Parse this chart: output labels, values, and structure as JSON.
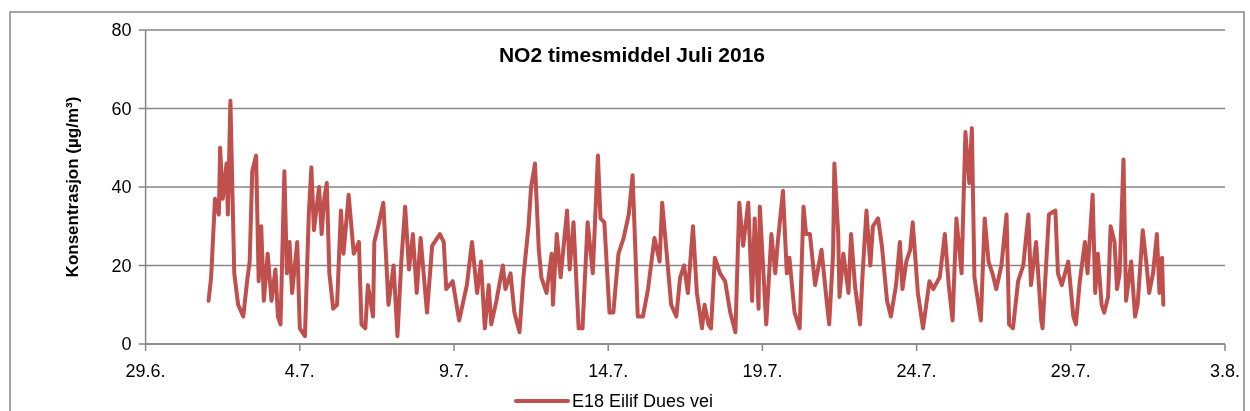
{
  "chart_data": {
    "type": "line",
    "title": "NO2 timesmiddel Juli 2016",
    "ylabel": "Konsentrasjon (µg/m³)",
    "xlim": [
      "2016-06-29",
      "2016-08-03"
    ],
    "xticks": [
      {
        "value": "2016-06-29",
        "label": "29.6."
      },
      {
        "value": "2016-07-04",
        "label": "4.7."
      },
      {
        "value": "2016-07-09",
        "label": "9.7."
      },
      {
        "value": "2016-07-14",
        "label": "14.7."
      },
      {
        "value": "2016-07-19",
        "label": "19.7."
      },
      {
        "value": "2016-07-24",
        "label": "24.7."
      },
      {
        "value": "2016-07-29",
        "label": "29.7."
      },
      {
        "value": "2016-08-03",
        "label": "3.8."
      }
    ],
    "ylim": [
      0,
      80
    ],
    "yticks": [
      0,
      20,
      40,
      60,
      80
    ],
    "grid": "y",
    "legend": "bottom",
    "line_style": "solid",
    "marker": "none",
    "x": [
      "2016-07-01T01:00",
      "2016-07-01T03:00",
      "2016-07-01T06:00",
      "2016-07-01T09:00",
      "2016-07-01T10:00",
      "2016-07-01T12:00",
      "2016-07-01T15:00",
      "2016-07-01T16:00",
      "2016-07-01T18:00",
      "2016-07-01T21:00",
      "2016-07-02T00:00",
      "2016-07-02T04:00",
      "2016-07-02T07:00",
      "2016-07-02T09:00",
      "2016-07-02T11:00",
      "2016-07-02T14:00",
      "2016-07-02T16:00",
      "2016-07-02T18:00",
      "2016-07-02T20:00",
      "2016-07-02T23:00",
      "2016-07-03T02:00",
      "2016-07-03T05:00",
      "2016-07-03T07:00",
      "2016-07-03T09:00",
      "2016-07-03T12:00",
      "2016-07-03T14:00",
      "2016-07-03T16:00",
      "2016-07-03T18:00",
      "2016-07-03T22:00",
      "2016-07-04T00:00",
      "2016-07-04T04:00",
      "2016-07-04T07:00",
      "2016-07-04T09:00",
      "2016-07-04T11:00",
      "2016-07-04T15:00",
      "2016-07-04T17:00",
      "2016-07-04T19:00",
      "2016-07-04T21:00",
      "2016-07-04T23:00",
      "2016-07-05T02:00",
      "2016-07-05T05:00",
      "2016-07-05T08:00",
      "2016-07-05T10:00",
      "2016-07-05T14:00",
      "2016-07-05T18:00",
      "2016-07-05T22:00",
      "2016-07-06T00:00",
      "2016-07-06T03:00",
      "2016-07-06T05:00",
      "2016-07-06T09:00",
      "2016-07-06T10:00",
      "2016-07-06T13:00",
      "2016-07-06T17:00",
      "2016-07-06T21:00",
      "2016-07-07T01:00",
      "2016-07-07T04:00",
      "2016-07-07T07:00",
      "2016-07-07T10:00",
      "2016-07-07T13:00",
      "2016-07-07T16:00",
      "2016-07-07T19:00",
      "2016-07-07T22:00",
      "2016-07-08T03:00",
      "2016-07-08T07:00",
      "2016-07-08T09:00",
      "2016-07-08T13:00",
      "2016-07-08T16:00",
      "2016-07-08T18:00",
      "2016-07-08T23:00",
      "2016-07-09T04:00",
      "2016-07-09T10:00",
      "2016-07-09T14:00",
      "2016-07-09T18:00",
      "2016-07-09T21:00",
      "2016-07-10T00:00",
      "2016-07-10T03:00",
      "2016-07-10T05:00",
      "2016-07-10T09:00",
      "2016-07-10T14:00",
      "2016-07-10T16:00",
      "2016-07-10T20:00",
      "2016-07-10T23:00",
      "2016-07-11T03:00",
      "2016-07-11T06:00",
      "2016-07-11T10:00",
      "2016-07-11T12:00",
      "2016-07-11T15:00",
      "2016-07-11T18:00",
      "2016-07-11T20:00",
      "2016-07-12T00:00",
      "2016-07-12T04:00",
      "2016-07-12T05:00",
      "2016-07-12T08:00",
      "2016-07-12T11:00",
      "2016-07-12T16:00",
      "2016-07-12T18:00",
      "2016-07-12T21:00",
      "2016-07-13T01:00",
      "2016-07-13T04:00",
      "2016-07-13T08:00",
      "2016-07-13T12:00",
      "2016-07-13T16:00",
      "2016-07-13T18:00",
      "2016-07-13T21:00",
      "2016-07-14T01:00",
      "2016-07-14T04:00",
      "2016-07-14T08:00",
      "2016-07-14T12:00",
      "2016-07-14T16:00",
      "2016-07-14T19:00",
      "2016-07-14T23:00",
      "2016-07-15T03:00",
      "2016-07-15T07:00",
      "2016-07-15T12:00",
      "2016-07-15T16:00",
      "2016-07-15T18:00",
      "2016-07-15T21:00",
      "2016-07-16T01:00",
      "2016-07-16T05:00",
      "2016-07-16T08:00",
      "2016-07-16T11:00",
      "2016-07-16T14:00",
      "2016-07-16T18:00",
      "2016-07-16T21:00",
      "2016-07-17T01:00",
      "2016-07-17T03:00",
      "2016-07-17T06:00",
      "2016-07-17T08:00",
      "2016-07-17T11:00",
      "2016-07-17T15:00",
      "2016-07-17T19:00",
      "2016-07-17T23:00",
      "2016-07-18T03:00",
      "2016-07-18T06:00",
      "2016-07-18T09:00",
      "2016-07-18T13:00",
      "2016-07-18T16:00",
      "2016-07-18T18:00",
      "2016-07-18T21:00",
      "2016-07-18T22:00",
      "2016-07-19T03:00",
      "2016-07-19T07:00",
      "2016-07-19T10:00",
      "2016-07-19T12:00",
      "2016-07-19T16:00",
      "2016-07-19T19:00",
      "2016-07-19T21:00",
      "2016-07-20T01:00",
      "2016-07-20T05:00",
      "2016-07-20T08:00",
      "2016-07-20T10:00",
      "2016-07-20T13:00",
      "2016-07-20T17:00",
      "2016-07-20T22:00",
      "2016-07-21T02:00",
      "2016-07-21T04:00",
      "2016-07-21T07:00",
      "2016-07-21T08:00",
      "2016-07-21T11:00",
      "2016-07-21T12:00",
      "2016-07-21T15:00",
      "2016-07-21T19:00",
      "2016-07-21T21:00",
      "2016-07-22T00:00",
      "2016-07-22T04:00",
      "2016-07-22T06:00",
      "2016-07-22T09:00",
      "2016-07-22T12:00",
      "2016-07-22T14:00",
      "2016-07-22T18:00",
      "2016-07-22T21:00",
      "2016-07-23T01:00",
      "2016-07-23T04:00",
      "2016-07-23T08:00",
      "2016-07-23T11:00",
      "2016-07-23T13:00",
      "2016-07-23T16:00",
      "2016-07-23T19:00",
      "2016-07-23T21:00",
      "2016-07-24T01:00",
      "2016-07-24T05:00",
      "2016-07-24T10:00",
      "2016-07-24T13:00",
      "2016-07-24T18:00",
      "2016-07-24T22:00",
      "2016-07-25T01:00",
      "2016-07-25T04:00",
      "2016-07-25T07:00",
      "2016-07-25T11:00",
      "2016-07-25T14:00",
      "2016-07-25T17:00",
      "2016-07-25T19:00",
      "2016-07-25T21:00",
      "2016-07-26T02:00",
      "2016-07-26T05:00",
      "2016-07-26T08:00",
      "2016-07-26T11:00",
      "2016-07-26T14:00",
      "2016-07-26T18:00",
      "2016-07-26T22:00",
      "2016-07-27T00:00",
      "2016-07-27T03:00",
      "2016-07-27T07:00",
      "2016-07-27T11:00",
      "2016-07-27T15:00",
      "2016-07-27T17:00",
      "2016-07-27T21:00",
      "2016-07-28T01:00",
      "2016-07-28T02:00",
      "2016-07-28T07:00",
      "2016-07-28T12:00",
      "2016-07-28T14:00",
      "2016-07-28T17:00",
      "2016-07-28T22:00",
      "2016-07-29T02:00",
      "2016-07-29T04:00",
      "2016-07-29T07:00",
      "2016-07-29T11:00",
      "2016-07-29T13:00",
      "2016-07-29T17:00",
      "2016-07-29T19:00",
      "2016-07-29T21:00",
      "2016-07-30T00:00",
      "2016-07-30T02:00",
      "2016-07-30T05:00",
      "2016-07-30T07:00",
      "2016-07-30T10:00",
      "2016-07-30T12:00",
      "2016-07-30T14:00",
      "2016-07-30T17:00",
      "2016-07-30T19:00",
      "2016-07-30T23:00",
      "2016-07-31T02:00",
      "2016-07-31T04:00",
      "2016-07-31T08:00",
      "2016-07-31T11:00",
      "2016-07-31T13:00",
      "2016-07-31T16:00",
      "2016-07-31T19:00",
      "2016-07-31T21:00",
      "2016-07-31T23:00",
      "2016-08-01T00:00"
    ],
    "series": [
      {
        "name": "E18 Eilif Dues vei",
        "color": "#c0504d",
        "values": [
          11,
          17,
          37,
          33,
          50,
          37,
          46,
          33,
          62,
          18,
          10,
          7,
          16,
          21,
          44,
          48,
          16,
          30,
          11,
          23,
          11,
          19,
          7,
          5,
          44,
          18,
          26,
          13,
          26,
          4,
          2,
          33,
          45,
          29,
          40,
          28,
          37,
          41,
          18,
          9,
          10,
          34,
          23,
          38,
          23,
          26,
          5,
          4,
          15,
          7,
          26,
          30,
          36,
          10,
          20,
          2,
          21,
          35,
          19,
          28,
          13,
          27,
          8,
          25,
          26,
          28,
          26,
          14,
          16,
          6,
          15,
          26,
          13,
          21,
          4,
          15,
          5,
          11,
          20,
          14,
          18,
          8,
          3,
          17,
          30,
          40,
          46,
          24,
          17,
          13,
          23,
          10,
          28,
          17,
          34,
          19,
          31,
          4,
          4,
          31,
          18,
          48,
          32,
          31,
          8,
          8,
          23,
          27,
          33,
          43,
          7,
          7,
          14,
          27,
          21,
          36,
          25,
          10,
          7,
          17,
          20,
          13,
          30,
          13,
          4,
          10,
          5,
          4,
          22,
          18,
          16,
          8,
          3,
          36,
          25,
          36,
          11,
          32,
          9,
          35,
          5,
          28,
          18,
          26,
          39,
          18,
          22,
          8,
          4,
          35,
          28,
          28,
          15,
          24,
          11,
          5,
          23,
          46,
          28,
          12,
          23,
          13,
          28,
          15,
          5,
          18,
          34,
          20,
          30,
          32,
          25,
          11,
          7,
          15,
          26,
          14,
          21,
          24,
          31,
          13,
          4,
          16,
          14,
          17,
          28,
          15,
          6,
          32,
          18,
          54,
          41,
          55,
          17,
          6,
          32,
          21,
          18,
          14,
          20,
          33,
          5,
          4,
          16,
          20,
          33,
          15,
          26,
          6,
          4,
          33,
          34,
          18,
          15,
          21,
          7,
          5,
          16,
          26,
          18,
          38,
          13,
          23,
          10,
          8,
          12,
          30,
          26,
          14,
          18,
          47,
          11,
          21,
          7,
          10,
          29,
          20,
          13,
          18,
          28,
          13,
          22,
          10
        ]
      }
    ]
  }
}
